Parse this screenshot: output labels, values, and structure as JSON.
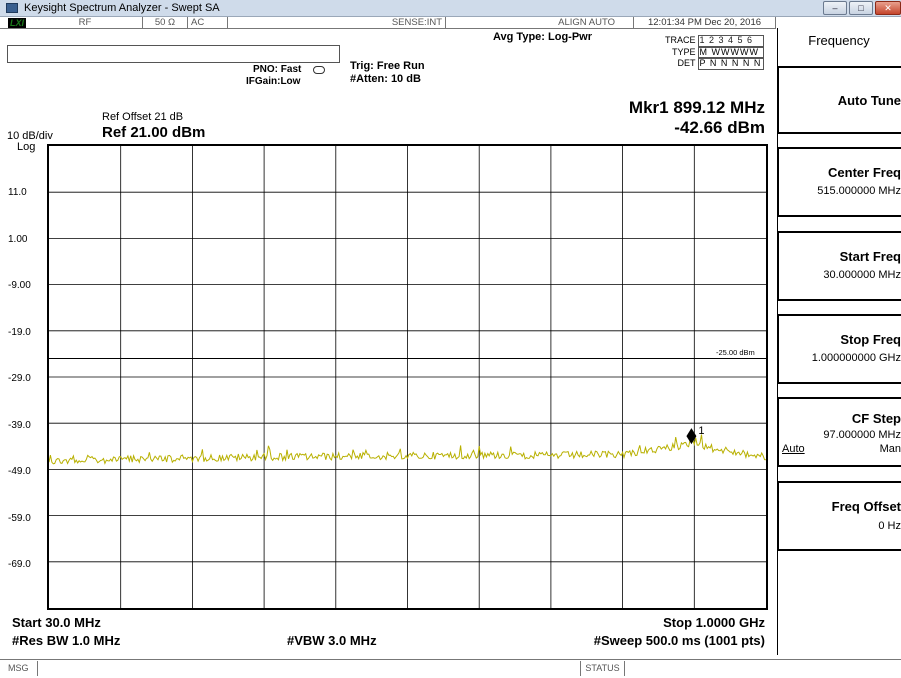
{
  "window": {
    "title": "Keysight Spectrum Analyzer - Swept SA",
    "min_glyph": "–",
    "max_glyph": "□",
    "close_glyph": "✕"
  },
  "status_bar": {
    "lxi": "LXI",
    "rf": "RF",
    "impedance": "50 Ω",
    "coupling": "AC",
    "sense": "SENSE:INT",
    "align": "ALIGN AUTO",
    "datetime": "12:01:34 PM Dec 20, 2016"
  },
  "settings": {
    "pno": "PNO: Fast",
    "ifgain": "IFGain:Low",
    "trig": "Trig: Free Run",
    "atten": "#Atten: 10 dB",
    "avg_type": "Avg Type: Log-Pwr"
  },
  "trace_info": {
    "trace_label": "TRACE",
    "trace_value": "1 2 3 4 5 6",
    "type_label": "TYPE",
    "type_value": "M WWWWW",
    "det_label": "DET",
    "det_value": "P N N N N N"
  },
  "marker": {
    "freq": "Mkr1 899.12 MHz",
    "amp": "-42.66 dBm",
    "label": "1"
  },
  "reference": {
    "offset": "Ref Offset 21 dB",
    "scale": "10 dB/div",
    "level": "Ref 21.00 dBm",
    "scale_type": "Log"
  },
  "y_ticks": [
    "11.0",
    "1.00",
    "-9.00",
    "-19.0",
    "-29.0",
    "-39.0",
    "-49.0",
    "-59.0",
    "-69.0"
  ],
  "limit_line": {
    "label": "-25.00 dBm",
    "value_dbm": -25.0
  },
  "chart_data": {
    "type": "line",
    "x_range_mhz": [
      30.0,
      1000.0
    ],
    "y_range_dbm": [
      -79.0,
      21.0
    ],
    "trace": {
      "color": "#b8b000",
      "noise_floor_dbm": -45.5,
      "points_mhz_dbm": [
        [
          30,
          -46.2
        ],
        [
          127,
          -45.9
        ],
        [
          224,
          -45.6
        ],
        [
          321,
          -45.3
        ],
        [
          418,
          -45.2
        ],
        [
          515,
          -45.1
        ],
        [
          612,
          -44.9
        ],
        [
          709,
          -45.0
        ],
        [
          806,
          -44.7
        ],
        [
          899.12,
          -42.66
        ],
        [
          1000,
          -45.4
        ]
      ]
    },
    "marker_freq_mhz": 899.12,
    "marker_amp_dbm": -42.66,
    "limit_dbm": -25.0
  },
  "footer": {
    "start": "Start 30.0 MHz",
    "stop": "Stop 1.0000 GHz",
    "res_bw": "#Res BW 1.0 MHz",
    "vbw": "#VBW 3.0 MHz",
    "sweep": "#Sweep  500.0 ms (1001 pts)"
  },
  "softkeys": {
    "menu_title": "Frequency",
    "auto_tune": "Auto Tune",
    "center_label": "Center Freq",
    "center_value": "515.000000 MHz",
    "start_label": "Start Freq",
    "start_value": "30.000000 MHz",
    "stop_label": "Stop Freq",
    "stop_value": "1.000000000 GHz",
    "cf_step_label": "CF Step",
    "cf_step_value": "97.000000 MHz",
    "cf_step_auto": "Auto",
    "cf_step_man": "Man",
    "freq_offset_label": "Freq Offset",
    "freq_offset_value": "0 Hz"
  },
  "message_bar": {
    "msg": "MSG",
    "status": "STATUS"
  }
}
